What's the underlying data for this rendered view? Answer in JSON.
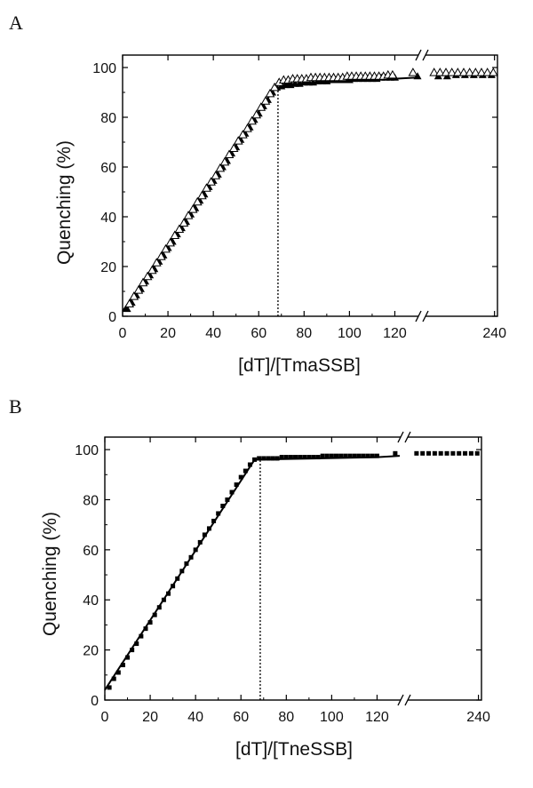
{
  "chart_data": [
    {
      "panel_label": "A",
      "type": "scatter",
      "xlabel": "[dT]/[TmaSSB]",
      "ylabel": "Quenching (%)",
      "xlim": [
        0,
        130
      ],
      "x_break_right": [
        125,
        245
      ],
      "ylim": [
        0,
        105
      ],
      "xticks": [
        0,
        20,
        40,
        60,
        80,
        100,
        120
      ],
      "xticks_right": [
        240
      ],
      "yticks": [
        0,
        20,
        40,
        60,
        80,
        100
      ],
      "dotted_line_x": 68.5,
      "fit_line": [
        [
          0,
          2
        ],
        [
          68,
          93
        ],
        [
          120,
          95.5
        ],
        [
          130,
          96
        ]
      ],
      "series": [
        {
          "marker": "filled-triangle",
          "points": [
            [
              2,
              3
            ],
            [
              4,
              5.5
            ],
            [
              6,
              8.5
            ],
            [
              8,
              11
            ],
            [
              10,
              14
            ],
            [
              12,
              16.5
            ],
            [
              14,
              19
            ],
            [
              16,
              22
            ],
            [
              18,
              24.5
            ],
            [
              20,
              27.5
            ],
            [
              22,
              30
            ],
            [
              24,
              33
            ],
            [
              26,
              35.5
            ],
            [
              28,
              38
            ],
            [
              30,
              41
            ],
            [
              32,
              43.5
            ],
            [
              34,
              46.5
            ],
            [
              36,
              49
            ],
            [
              38,
              52
            ],
            [
              40,
              54.5
            ],
            [
              42,
              57
            ],
            [
              44,
              60
            ],
            [
              46,
              62.5
            ],
            [
              48,
              65.5
            ],
            [
              50,
              68
            ],
            [
              52,
              71
            ],
            [
              54,
              73.5
            ],
            [
              56,
              76
            ],
            [
              58,
              79
            ],
            [
              60,
              81.5
            ],
            [
              62,
              84.5
            ],
            [
              64,
              87
            ],
            [
              66,
              90
            ],
            [
              68,
              92
            ],
            [
              70,
              92.5
            ],
            [
              72,
              93
            ],
            [
              74,
              93
            ],
            [
              76,
              93.5
            ],
            [
              78,
              93.5
            ],
            [
              80,
              94
            ],
            [
              82,
              94
            ],
            [
              84,
              94
            ],
            [
              86,
              94.5
            ],
            [
              88,
              94.5
            ],
            [
              90,
              94.5
            ],
            [
              92,
              95
            ],
            [
              94,
              95
            ],
            [
              96,
              95
            ],
            [
              98,
              95
            ],
            [
              100,
              95
            ],
            [
              102,
              95.5
            ],
            [
              104,
              95.5
            ],
            [
              106,
              95.5
            ],
            [
              108,
              95.5
            ],
            [
              110,
              95.5
            ],
            [
              112,
              95.5
            ],
            [
              114,
              96
            ],
            [
              116,
              96
            ],
            [
              118,
              96
            ],
            [
              120,
              96
            ]
          ],
          "points_right": [
            [
              130,
              96.5
            ],
            [
              145,
              96.5
            ],
            [
              160,
              96.5
            ],
            [
              175,
              97
            ],
            [
              190,
              97
            ],
            [
              205,
              97
            ],
            [
              220,
              97
            ],
            [
              235,
              97
            ]
          ]
        },
        {
          "marker": "open-triangle",
          "points": [
            [
              3,
              5
            ],
            [
              5,
              8
            ],
            [
              7,
              10.5
            ],
            [
              9,
              13.5
            ],
            [
              11,
              16
            ],
            [
              13,
              18.5
            ],
            [
              15,
              21.5
            ],
            [
              17,
              24
            ],
            [
              19,
              27
            ],
            [
              21,
              29.5
            ],
            [
              23,
              32.5
            ],
            [
              25,
              35
            ],
            [
              27,
              37.5
            ],
            [
              29,
              40.5
            ],
            [
              31,
              43
            ],
            [
              33,
              46
            ],
            [
              35,
              48.5
            ],
            [
              37,
              51.5
            ],
            [
              39,
              54
            ],
            [
              41,
              56.5
            ],
            [
              43,
              59.5
            ],
            [
              45,
              62
            ],
            [
              47,
              65
            ],
            [
              49,
              67.5
            ],
            [
              51,
              70.5
            ],
            [
              53,
              73
            ],
            [
              55,
              75.5
            ],
            [
              57,
              78.5
            ],
            [
              59,
              81
            ],
            [
              61,
              84
            ],
            [
              63,
              86.5
            ],
            [
              65,
              89.5
            ],
            [
              67,
              92
            ],
            [
              69,
              94
            ],
            [
              71,
              95
            ],
            [
              73,
              95
            ],
            [
              75,
              95.5
            ],
            [
              77,
              95.5
            ],
            [
              79,
              95.5
            ],
            [
              81,
              95.5
            ],
            [
              83,
              96
            ],
            [
              85,
              96
            ],
            [
              87,
              96
            ],
            [
              89,
              96
            ],
            [
              91,
              96
            ],
            [
              93,
              96
            ],
            [
              95,
              96
            ],
            [
              97,
              96
            ],
            [
              99,
              96.5
            ],
            [
              101,
              96.5
            ],
            [
              103,
              96.5
            ],
            [
              105,
              96.5
            ],
            [
              107,
              96.5
            ],
            [
              109,
              96.5
            ],
            [
              111,
              96.5
            ],
            [
              113,
              96.5
            ],
            [
              115,
              96.5
            ],
            [
              117,
              97
            ],
            [
              119,
              97
            ]
          ],
          "points_right": [
            [
              128,
              98
            ],
            [
              138,
              98
            ],
            [
              148,
              98
            ],
            [
              158,
              98
            ],
            [
              168,
              98
            ],
            [
              178,
              98
            ],
            [
              188,
              98
            ],
            [
              198,
              98
            ],
            [
              208,
              98
            ],
            [
              218,
              98
            ],
            [
              228,
              98
            ],
            [
              238,
              98
            ]
          ]
        }
      ]
    },
    {
      "panel_label": "B",
      "type": "scatter",
      "xlabel": "[dT]/[TneSSB]",
      "ylabel": "Quenching (%)",
      "xlim": [
        0,
        130
      ],
      "x_break_right": [
        125,
        245
      ],
      "ylim": [
        0,
        105
      ],
      "xticks": [
        0,
        20,
        40,
        60,
        80,
        100,
        120
      ],
      "xticks_right": [
        240
      ],
      "yticks": [
        0,
        20,
        40,
        60,
        80,
        100
      ],
      "dotted_line_x": 68.5,
      "fit_line": [
        [
          0,
          4
        ],
        [
          66,
          96
        ],
        [
          120,
          97
        ],
        [
          130,
          97.5
        ]
      ],
      "series": [
        {
          "marker": "filled-square",
          "points": [
            [
              2,
              5
            ],
            [
              4,
              8.5
            ],
            [
              6,
              11
            ],
            [
              8,
              14
            ],
            [
              10,
              17
            ],
            [
              12,
              20
            ],
            [
              14,
              22.5
            ],
            [
              16,
              25.5
            ],
            [
              18,
              28.5
            ],
            [
              20,
              31
            ],
            [
              22,
              34
            ],
            [
              24,
              37
            ],
            [
              26,
              40
            ],
            [
              28,
              42.5
            ],
            [
              30,
              45.5
            ],
            [
              32,
              48.5
            ],
            [
              34,
              51.5
            ],
            [
              36,
              54.5
            ],
            [
              38,
              57
            ],
            [
              40,
              60
            ],
            [
              42,
              63
            ],
            [
              44,
              66
            ],
            [
              46,
              68.5
            ],
            [
              48,
              71.5
            ],
            [
              50,
              74.5
            ],
            [
              52,
              77.5
            ],
            [
              54,
              80
            ],
            [
              56,
              83
            ],
            [
              58,
              86
            ],
            [
              60,
              89
            ],
            [
              62,
              91.5
            ],
            [
              64,
              94
            ],
            [
              66,
              96
            ],
            [
              68,
              96.5
            ],
            [
              70,
              96.5
            ],
            [
              72,
              96.5
            ],
            [
              74,
              96.5
            ],
            [
              76,
              96.5
            ],
            [
              78,
              97
            ],
            [
              80,
              97
            ],
            [
              82,
              97
            ],
            [
              84,
              97
            ],
            [
              86,
              97
            ],
            [
              88,
              97
            ],
            [
              90,
              97
            ],
            [
              92,
              97
            ],
            [
              94,
              97
            ],
            [
              96,
              97.5
            ],
            [
              98,
              97.5
            ],
            [
              100,
              97.5
            ],
            [
              102,
              97.5
            ],
            [
              104,
              97.5
            ],
            [
              106,
              97.5
            ],
            [
              108,
              97.5
            ],
            [
              110,
              97.5
            ],
            [
              112,
              97.5
            ],
            [
              114,
              97.5
            ],
            [
              116,
              97.5
            ],
            [
              118,
              97.5
            ],
            [
              120,
              97.5
            ]
          ],
          "points_right": [
            [
              128,
              98.5
            ],
            [
              138,
              98.5
            ],
            [
              148,
              98.5
            ],
            [
              158,
              98.5
            ],
            [
              168,
              98.5
            ],
            [
              178,
              98.5
            ],
            [
              188,
              98.5
            ],
            [
              198,
              98.5
            ],
            [
              208,
              98.5
            ],
            [
              218,
              98.5
            ],
            [
              228,
              98.5
            ],
            [
              238,
              98.5
            ]
          ]
        }
      ]
    }
  ]
}
